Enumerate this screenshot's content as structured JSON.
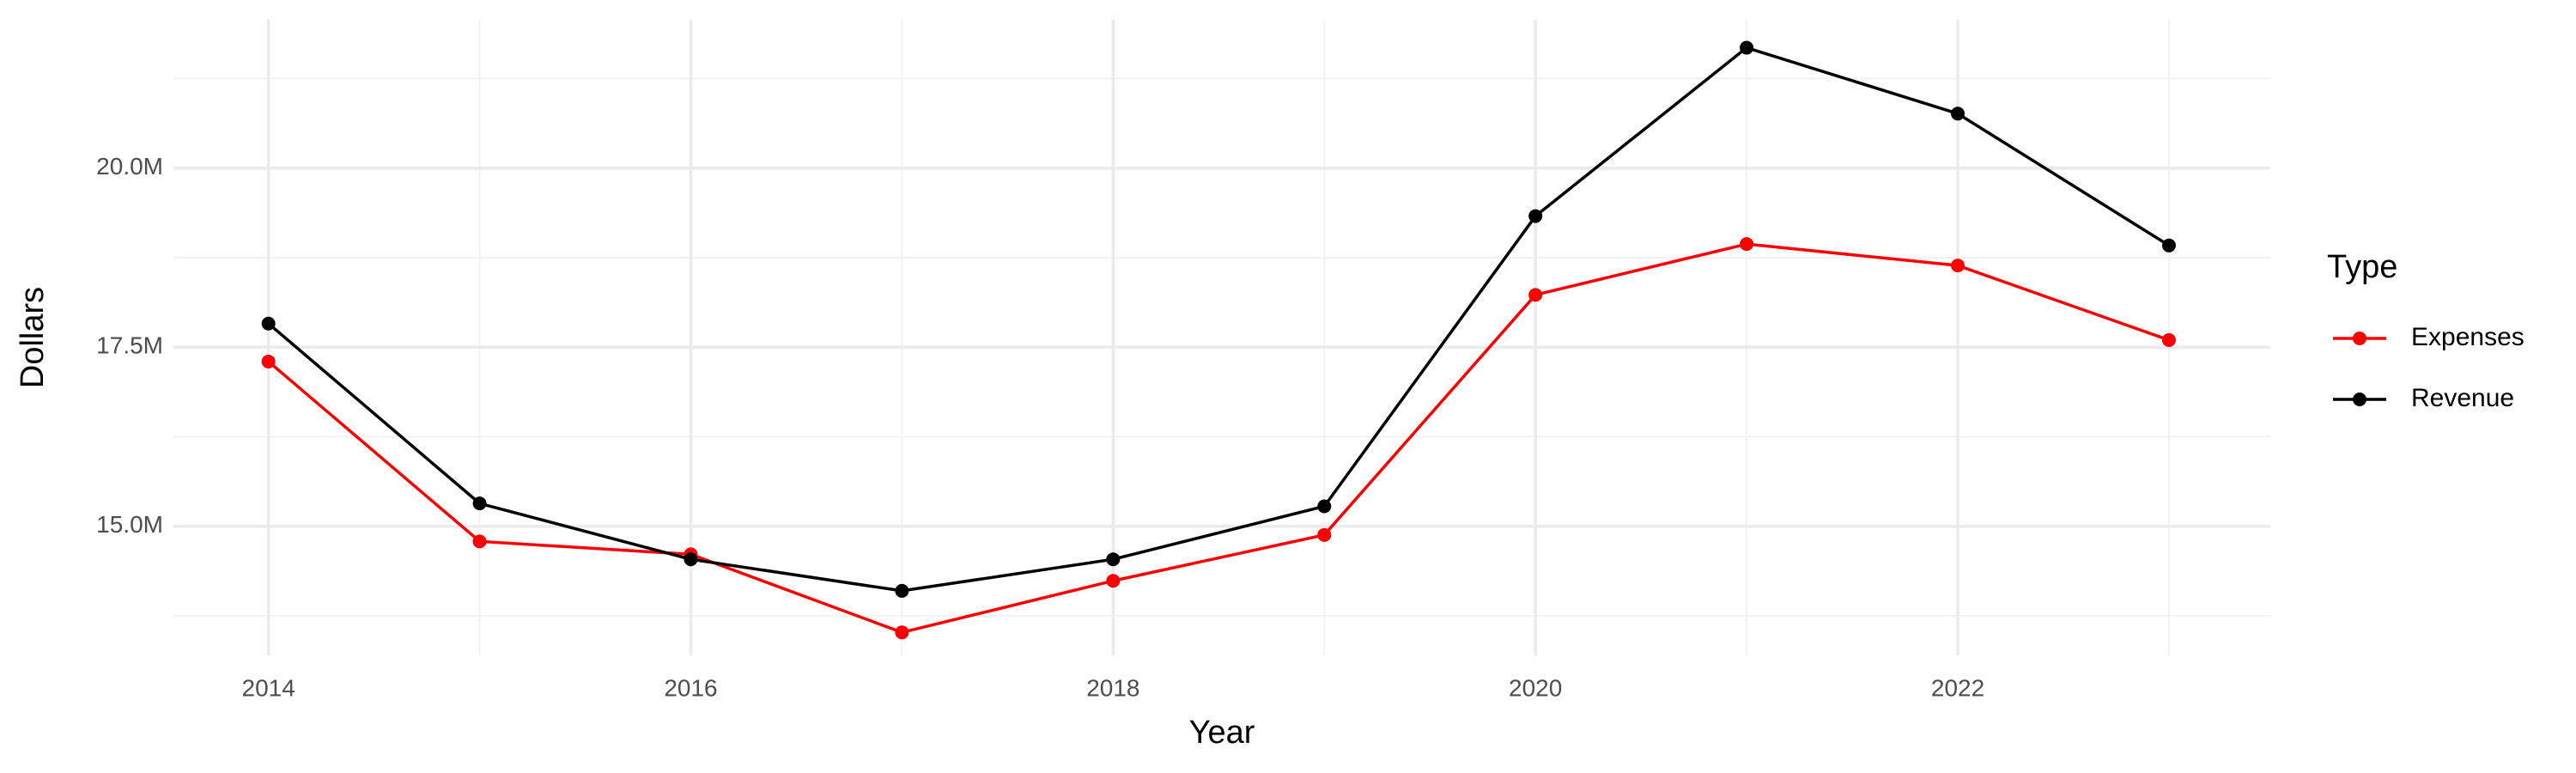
{
  "chart_data": {
    "type": "line",
    "x_label": "Year",
    "y_label": "Dollars",
    "legend_title": "Type",
    "legend_position": "right",
    "grid": true,
    "x": [
      2014,
      2015,
      2016,
      2017,
      2018,
      2019,
      2020,
      2021,
      2022,
      2023
    ],
    "series": [
      {
        "name": "Expenses",
        "color": "#ff0000",
        "values": [
          17300000,
          14790000,
          14610000,
          13520000,
          14240000,
          14880000,
          18230000,
          18940000,
          18640000,
          17600000
        ]
      },
      {
        "name": "Revenue",
        "color": "#000000",
        "values": [
          17830000,
          15320000,
          14540000,
          14100000,
          14540000,
          15280000,
          19330000,
          21680000,
          20760000,
          18920000
        ]
      }
    ],
    "xlim": [
      2013.55,
      2023.48
    ],
    "xticks": [
      2014,
      2016,
      2018,
      2020,
      2022
    ],
    "minor_xticks": [
      2015,
      2017,
      2019,
      2021,
      2023
    ],
    "ylim": [
      13200000,
      22070000
    ],
    "yticks": [
      {
        "value": 15000000,
        "label": "15.0M"
      },
      {
        "value": 17500000,
        "label": "17.5M"
      },
      {
        "value": 20000000,
        "label": "20.0M"
      }
    ],
    "minor_yticks": [
      13750000,
      16250000,
      18750000,
      21250000
    ]
  }
}
